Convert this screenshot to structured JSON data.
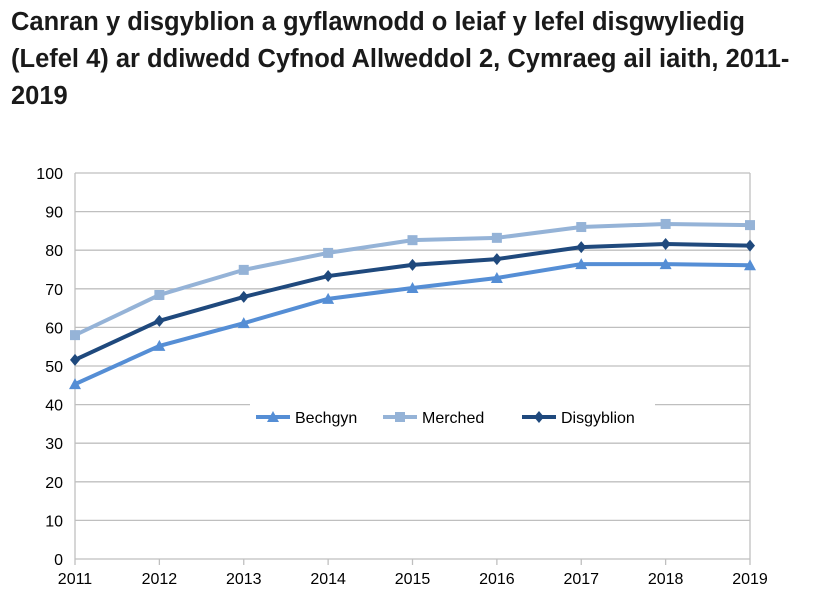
{
  "chart_data": {
    "type": "line",
    "title": "Canran y disgyblion a gyflawnodd o leiaf y lefel disgwyliedig (Lefel 4) ar ddiwedd Cyfnod Allweddol 2, Cymraeg ail iaith, 2011-2019",
    "xlabel": "",
    "ylabel": "",
    "x": [
      2011,
      2012,
      2013,
      2014,
      2015,
      2016,
      2017,
      2018,
      2019
    ],
    "ylim": [
      0,
      100
    ],
    "yticks": [
      0,
      10,
      20,
      30,
      40,
      50,
      60,
      70,
      80,
      90,
      100
    ],
    "grid": true,
    "legend_placement": "center",
    "series": [
      {
        "name": "Bechgyn",
        "color": "#558ED5",
        "marker": "triangle",
        "values": [
          45.3,
          55.2,
          61.1,
          67.4,
          70.2,
          72.8,
          76.4,
          76.4,
          76.1
        ]
      },
      {
        "name": "Merched",
        "color": "#95B3D7",
        "marker": "square",
        "values": [
          58.0,
          68.4,
          74.9,
          79.3,
          82.6,
          83.2,
          86.0,
          86.8,
          86.5
        ]
      },
      {
        "name": "Disgyblion",
        "color": "#1F497D",
        "marker": "diamond",
        "values": [
          51.6,
          61.7,
          67.9,
          73.3,
          76.2,
          77.7,
          80.8,
          81.6,
          81.2
        ]
      }
    ]
  }
}
